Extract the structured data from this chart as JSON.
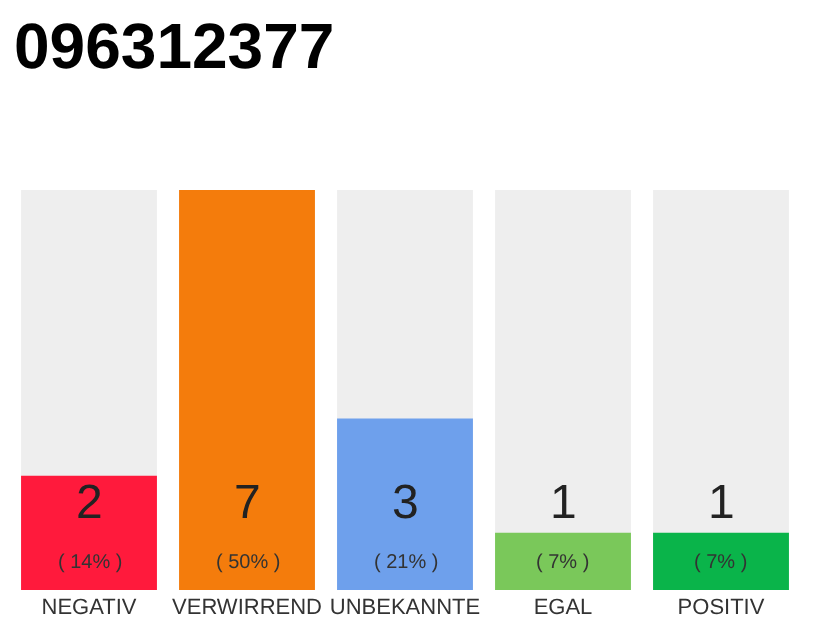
{
  "chart_data": {
    "type": "bar",
    "title": "096312377",
    "categories": [
      "NEGATIV",
      "VERWIRREND",
      "UNBEKANNTE",
      "EGAL",
      "POSITIV"
    ],
    "values": [
      2,
      7,
      3,
      1,
      1
    ],
    "colors": [
      "#ff1a3c",
      "#f47c0c",
      "#6ea0ec",
      "#7ac85a",
      "#0ab44a"
    ],
    "ylim": [
      0,
      7
    ],
    "tick_labels": "x",
    "grid": false,
    "data_labels": true,
    "annotations": [
      "( 14% )",
      "( 50% )",
      "( 21% )",
      "( 7% )",
      "( 7% )"
    ]
  }
}
